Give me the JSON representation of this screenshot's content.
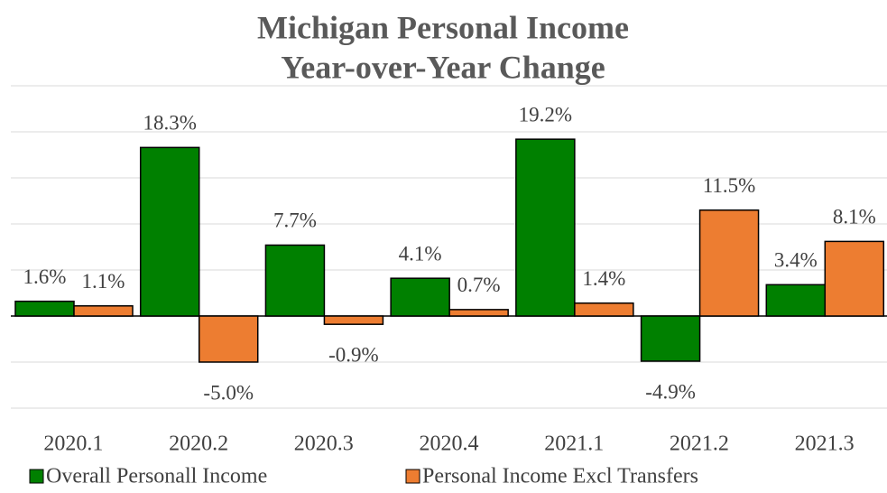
{
  "chart_data": {
    "type": "bar",
    "title": [
      "Michigan Personal Income",
      "Year-over-Year Change"
    ],
    "categories": [
      "2020.1",
      "2020.2",
      "2020.3",
      "2020.4",
      "2021.1",
      "2021.2",
      "2021.3"
    ],
    "series": [
      {
        "name": "Overall Personall Income",
        "color": "#008000",
        "values": [
          1.6,
          18.3,
          7.7,
          4.1,
          19.2,
          -4.9,
          3.4
        ],
        "value_labels": [
          "1.6%",
          "18.3%",
          "7.7%",
          "4.1%",
          "19.2%",
          "-4.9%",
          "3.4%"
        ]
      },
      {
        "name": "Personal Income Excl Transfers",
        "color": "#ed7d31",
        "values": [
          1.1,
          -5.0,
          -0.9,
          0.7,
          1.4,
          11.5,
          8.1
        ],
        "value_labels": [
          "1.1%",
          "-5.0%",
          "-0.9%",
          "0.7%",
          "1.4%",
          "11.5%",
          "8.1%"
        ]
      }
    ],
    "ylim": [
      -10,
      25
    ],
    "yticks": [
      -10,
      -5,
      0,
      5,
      10,
      15,
      20,
      25
    ],
    "grid": true,
    "legend": "bottom"
  }
}
